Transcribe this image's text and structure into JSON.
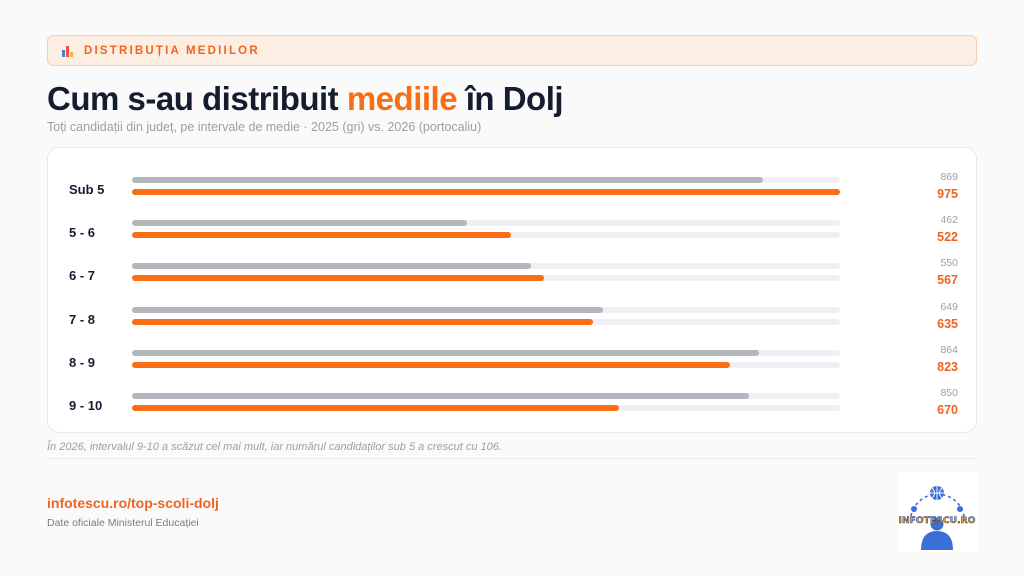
{
  "header": {
    "tag_label": "DISTRIBUȚIA MEDIILOR",
    "title_before": "Cum s-au distribuit ",
    "title_highlight": "mediile",
    "title_after": " în Dolj",
    "subtitle": "Toți candidații din județ, pe intervale de medie · 2025 (gri) vs. 2026 (portocaliu)"
  },
  "chart_data": {
    "type": "bar",
    "orientation": "horizontal",
    "categories": [
      "Sub 5",
      "5 - 6",
      "6 - 7",
      "7 - 8",
      "8 - 9",
      "9 - 10"
    ],
    "series": [
      {
        "name": "2025",
        "color": "#b3b6bd",
        "values": [
          869,
          462,
          550,
          649,
          864,
          850
        ]
      },
      {
        "name": "2026",
        "color": "#f96e14",
        "values": [
          975,
          522,
          567,
          635,
          823,
          670
        ]
      }
    ],
    "xlim": [
      0,
      975
    ]
  },
  "footer": {
    "note": "În 2026, intervalul 9-10 a scăzut cel mai mult, iar numărul candidaților sub 5 a crescut cu 106.",
    "link": "infotescu.ro/top-scoli-dolj",
    "source": "Date oficiale Ministerul Educației",
    "logo_text": "INFOTESCU.RO"
  },
  "colors": {
    "accent": "#f96e14",
    "muted": "#b3b6bd",
    "ink": "#141c30"
  }
}
